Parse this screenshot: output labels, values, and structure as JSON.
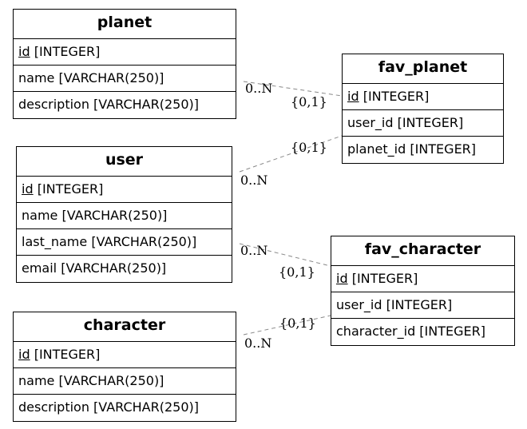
{
  "entities": {
    "planet": {
      "title": "planet",
      "fields": [
        {
          "pk": "id",
          "type": " [INTEGER]"
        },
        {
          "text": "name [VARCHAR(250)]"
        },
        {
          "text": "description [VARCHAR(250)]"
        }
      ]
    },
    "user": {
      "title": "user",
      "fields": [
        {
          "pk": "id",
          "type": " [INTEGER]"
        },
        {
          "text": "name [VARCHAR(250)]"
        },
        {
          "text": "last_name [VARCHAR(250)]"
        },
        {
          "text": "email [VARCHAR(250)]"
        }
      ]
    },
    "character": {
      "title": "character",
      "fields": [
        {
          "pk": "id",
          "type": " [INTEGER]"
        },
        {
          "text": "name [VARCHAR(250)]"
        },
        {
          "text": "description [VARCHAR(250)]"
        }
      ]
    },
    "fav_planet": {
      "title": "fav_planet",
      "fields": [
        {
          "pk": "id",
          "type": " [INTEGER]"
        },
        {
          "text": "user_id [INTEGER]"
        },
        {
          "text": "planet_id [INTEGER]"
        }
      ]
    },
    "fav_character": {
      "title": "fav_character",
      "fields": [
        {
          "pk": "id",
          "type": " [INTEGER]"
        },
        {
          "text": "user_id [INTEGER]"
        },
        {
          "text": "character_id [INTEGER]"
        }
      ]
    }
  },
  "relationships": [
    {
      "from": "planet",
      "to": "fav_planet",
      "from_card": "0..N",
      "to_card": "{0,1}"
    },
    {
      "from": "user",
      "to": "fav_planet",
      "from_card": "0..N",
      "to_card": "{0,1}"
    },
    {
      "from": "user",
      "to": "fav_character",
      "from_card": "0..N",
      "to_card": "{0,1}"
    },
    {
      "from": "character",
      "to": "fav_character",
      "from_card": "0..N",
      "to_card": "{0,1}"
    }
  ],
  "colors": {
    "line": "#888888",
    "border": "#000000",
    "background": "#ffffff"
  }
}
